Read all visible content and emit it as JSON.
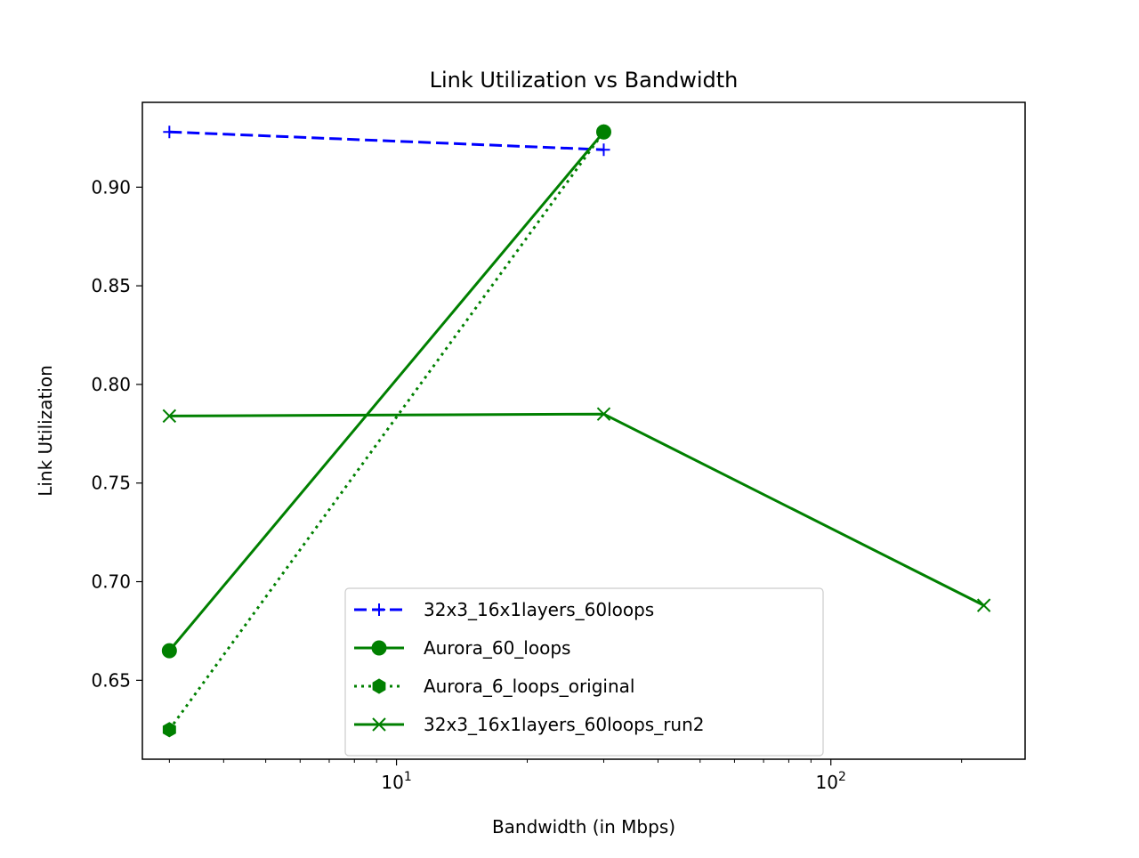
{
  "chart_data": {
    "type": "line",
    "title": "Link Utilization vs Bandwidth",
    "xlabel": "Bandwidth (in Mbps)",
    "ylabel": "Link Utilization",
    "xscale": "log",
    "xlim": [
      2.6,
      280
    ],
    "ylim": [
      0.61,
      0.943
    ],
    "x_ticks": [
      {
        "value": 10,
        "base": "10",
        "exp": "1"
      },
      {
        "value": 100,
        "base": "10",
        "exp": "2"
      }
    ],
    "y_ticks": [
      {
        "value": 0.65,
        "label": "0.65"
      },
      {
        "value": 0.7,
        "label": "0.70"
      },
      {
        "value": 0.75,
        "label": "0.75"
      },
      {
        "value": 0.8,
        "label": "0.80"
      },
      {
        "value": 0.85,
        "label": "0.85"
      },
      {
        "value": 0.9,
        "label": "0.90"
      }
    ],
    "grid": false,
    "legend_position": "lower-center",
    "series": [
      {
        "name": "32x3_16x1layers_60loops",
        "color": "#0000ff",
        "linestyle": "dashed",
        "marker": "plus",
        "points": [
          [
            3,
            0.928
          ],
          [
            30,
            0.919
          ]
        ]
      },
      {
        "name": "Aurora_60_loops",
        "color": "#008000",
        "linestyle": "solid",
        "marker": "circle",
        "points": [
          [
            3,
            0.665
          ],
          [
            30,
            0.928
          ]
        ]
      },
      {
        "name": "Aurora_6_loops_original",
        "color": "#008000",
        "linestyle": "dotted",
        "marker": "hexagon",
        "points": [
          [
            3,
            0.625
          ],
          [
            30,
            0.928
          ]
        ]
      },
      {
        "name": "32x3_16x1layers_60loops_run2",
        "color": "#008000",
        "linestyle": "solid",
        "marker": "x",
        "points": [
          [
            3,
            0.784
          ],
          [
            30,
            0.785
          ],
          [
            225,
            0.688
          ]
        ]
      }
    ]
  }
}
